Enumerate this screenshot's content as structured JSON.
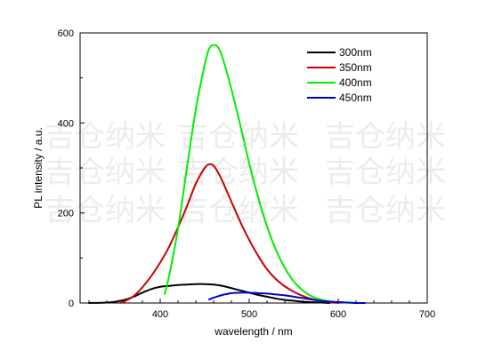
{
  "chart_data": {
    "type": "line",
    "title": "",
    "xlabel": "wavelength / nm",
    "ylabel": "PL intensity / a.u.",
    "xlim": [
      310,
      700
    ],
    "ylim": [
      0,
      600
    ],
    "xticks": [
      400,
      500,
      600,
      700
    ],
    "yticks": [
      0,
      200,
      400,
      600
    ],
    "grid": false,
    "legend_position": "top-right",
    "watermark": "吉仓纳米",
    "series": [
      {
        "name": "300nm",
        "color": "#000000",
        "x": [
          320,
          340,
          350,
          360,
          370,
          380,
          390,
          400,
          410,
          420,
          430,
          440,
          450,
          460,
          470,
          480,
          490,
          500,
          510,
          520,
          530,
          540,
          550,
          560,
          570,
          580,
          590
        ],
        "y": [
          0,
          1,
          3,
          7,
          14,
          23,
          31,
          36,
          38,
          40,
          41,
          42,
          42,
          41,
          38,
          33,
          28,
          23,
          18,
          14,
          10,
          7,
          5,
          3,
          2,
          1,
          0
        ]
      },
      {
        "name": "350nm",
        "color": "#cc0000",
        "x": [
          355,
          360,
          370,
          380,
          390,
          400,
          410,
          420,
          430,
          440,
          450,
          455,
          460,
          465,
          470,
          480,
          490,
          500,
          510,
          520,
          530,
          540,
          550,
          560,
          570,
          580,
          590,
          600
        ],
        "y": [
          0,
          4,
          15,
          35,
          60,
          90,
          125,
          168,
          215,
          265,
          300,
          308,
          305,
          290,
          270,
          225,
          180,
          140,
          105,
          75,
          53,
          37,
          25,
          16,
          9,
          5,
          2,
          0
        ]
      },
      {
        "name": "400nm",
        "color": "#00ee00",
        "x": [
          405,
          410,
          420,
          430,
          440,
          450,
          455,
          460,
          465,
          470,
          480,
          490,
          500,
          510,
          520,
          530,
          540,
          550,
          560,
          570,
          580,
          590,
          600,
          610,
          620,
          630
        ],
        "y": [
          20,
          60,
          165,
          300,
          430,
          530,
          565,
          573,
          568,
          545,
          475,
          395,
          310,
          235,
          170,
          118,
          78,
          48,
          28,
          15,
          8,
          4,
          2,
          1,
          0,
          0
        ]
      },
      {
        "name": "450nm",
        "color": "#0000cc",
        "x": [
          455,
          460,
          465,
          470,
          475,
          480,
          490,
          500,
          510,
          520,
          530,
          540,
          550,
          560,
          570,
          580,
          590,
          600,
          610,
          620,
          630
        ],
        "y": [
          8,
          12,
          15,
          18,
          20,
          22,
          23,
          23,
          22,
          21,
          19,
          17,
          14,
          11,
          8,
          5,
          3,
          2,
          1,
          0,
          0
        ]
      }
    ]
  }
}
